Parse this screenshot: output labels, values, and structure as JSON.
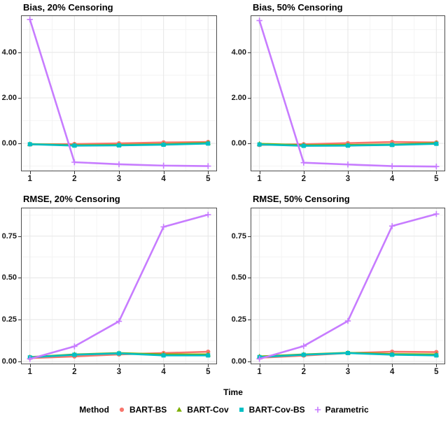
{
  "figure": {
    "xlabel": "Time"
  },
  "legend": {
    "title": "Method",
    "items": [
      {
        "name": "BART-BS",
        "shape": "circle",
        "color": "#F8766D"
      },
      {
        "name": "BART-Cov",
        "shape": "triangle",
        "color": "#7CAE00"
      },
      {
        "name": "BART-Cov-BS",
        "shape": "square",
        "color": "#00BFC4"
      },
      {
        "name": "Parametric",
        "shape": "plus",
        "color": "#C77CFF"
      }
    ]
  },
  "style": {
    "panel_border": "#4d4d4d",
    "grid_major": "#e8e8e8",
    "grid_minor": "#f4f4f4",
    "tick_color": "#333333"
  },
  "chart_data": [
    {
      "type": "line",
      "title": "Bias, 20% Censoring",
      "x": [
        1,
        2,
        3,
        4,
        5
      ],
      "xlim": [
        0.8,
        5.2
      ],
      "ylim": [
        -1.23,
        5.63
      ],
      "xticks": {
        "values": [
          1,
          2,
          3,
          4,
          5
        ],
        "labels": [
          "1",
          "2",
          "3",
          "4",
          "5"
        ],
        "minor": [
          1.5,
          2.5,
          3.5,
          4.5
        ]
      },
      "yticks": {
        "values": [
          0,
          2,
          4
        ],
        "labels": [
          "0.00",
          "2.00",
          "4.00"
        ],
        "minor": [
          -1,
          1,
          3,
          5
        ]
      },
      "series": [
        {
          "name": "BART-BS",
          "values": [
            -0.05,
            -0.03,
            0.0,
            0.04,
            0.06
          ]
        },
        {
          "name": "BART-Cov",
          "values": [
            -0.03,
            -0.08,
            -0.07,
            -0.04,
            0.02
          ]
        },
        {
          "name": "BART-Cov-BS",
          "values": [
            -0.04,
            -0.1,
            -0.09,
            -0.06,
            -0.01
          ]
        },
        {
          "name": "Parametric",
          "values": [
            5.45,
            -0.83,
            -0.92,
            -0.98,
            -1.0
          ]
        }
      ]
    },
    {
      "type": "line",
      "title": "Bias, 50% Censoring",
      "x": [
        1,
        2,
        3,
        4,
        5
      ],
      "xlim": [
        0.8,
        5.2
      ],
      "ylim": [
        -1.23,
        5.63
      ],
      "xticks": {
        "values": [
          1,
          2,
          3,
          4,
          5
        ],
        "labels": [
          "1",
          "2",
          "3",
          "4",
          "5"
        ],
        "minor": [
          1.5,
          2.5,
          3.5,
          4.5
        ]
      },
      "yticks": {
        "values": [
          0,
          2,
          4
        ],
        "labels": [
          "0.00",
          "2.00",
          "4.00"
        ],
        "minor": [
          -1,
          1,
          3,
          5
        ]
      },
      "series": [
        {
          "name": "BART-BS",
          "values": [
            -0.07,
            -0.04,
            0.01,
            0.06,
            0.04
          ]
        },
        {
          "name": "BART-Cov",
          "values": [
            -0.02,
            -0.08,
            -0.07,
            -0.05,
            0.01
          ]
        },
        {
          "name": "BART-Cov-BS",
          "values": [
            -0.05,
            -0.11,
            -0.1,
            -0.07,
            -0.02
          ]
        },
        {
          "name": "Parametric",
          "values": [
            5.4,
            -0.85,
            -0.93,
            -1.0,
            -1.02
          ]
        }
      ]
    },
    {
      "type": "line",
      "title": "RMSE, 20% Censoring",
      "x": [
        1,
        2,
        3,
        4,
        5
      ],
      "xlim": [
        0.8,
        5.2
      ],
      "ylim": [
        -0.017,
        0.92
      ],
      "xticks": {
        "values": [
          1,
          2,
          3,
          4,
          5
        ],
        "labels": [
          "1",
          "2",
          "3",
          "4",
          "5"
        ],
        "minor": [
          1.5,
          2.5,
          3.5,
          4.5
        ]
      },
      "yticks": {
        "values": [
          0,
          0.25,
          0.5,
          0.75
        ],
        "labels": [
          "0.00",
          "0.25",
          "0.50",
          "0.75"
        ],
        "minor": [
          0.125,
          0.375,
          0.625,
          0.875
        ]
      },
      "series": [
        {
          "name": "BART-BS",
          "values": [
            0.02,
            0.03,
            0.042,
            0.05,
            0.058
          ]
        },
        {
          "name": "BART-Cov",
          "values": [
            0.026,
            0.042,
            0.05,
            0.042,
            0.042
          ]
        },
        {
          "name": "BART-Cov-BS",
          "values": [
            0.024,
            0.04,
            0.048,
            0.036,
            0.036
          ]
        },
        {
          "name": "Parametric",
          "values": [
            0.015,
            0.09,
            0.24,
            0.805,
            0.878
          ]
        }
      ]
    },
    {
      "type": "line",
      "title": "RMSE, 50% Censoring",
      "x": [
        1,
        2,
        3,
        4,
        5
      ],
      "xlim": [
        0.8,
        5.2
      ],
      "ylim": [
        -0.017,
        0.92
      ],
      "xticks": {
        "values": [
          1,
          2,
          3,
          4,
          5
        ],
        "labels": [
          "1",
          "2",
          "3",
          "4",
          "5"
        ],
        "minor": [
          1.5,
          2.5,
          3.5,
          4.5
        ]
      },
      "yticks": {
        "values": [
          0,
          0.25,
          0.5,
          0.75
        ],
        "labels": [
          "0.00",
          "0.25",
          "0.50",
          "0.75"
        ],
        "minor": [
          0.125,
          0.375,
          0.625,
          0.875
        ]
      },
      "series": [
        {
          "name": "BART-BS",
          "values": [
            0.022,
            0.035,
            0.05,
            0.058,
            0.056
          ]
        },
        {
          "name": "BART-Cov",
          "values": [
            0.03,
            0.042,
            0.052,
            0.044,
            0.042
          ]
        },
        {
          "name": "BART-Cov-BS",
          "values": [
            0.026,
            0.04,
            0.05,
            0.04,
            0.036
          ]
        },
        {
          "name": "Parametric",
          "values": [
            0.015,
            0.092,
            0.242,
            0.81,
            0.882
          ]
        }
      ]
    }
  ]
}
